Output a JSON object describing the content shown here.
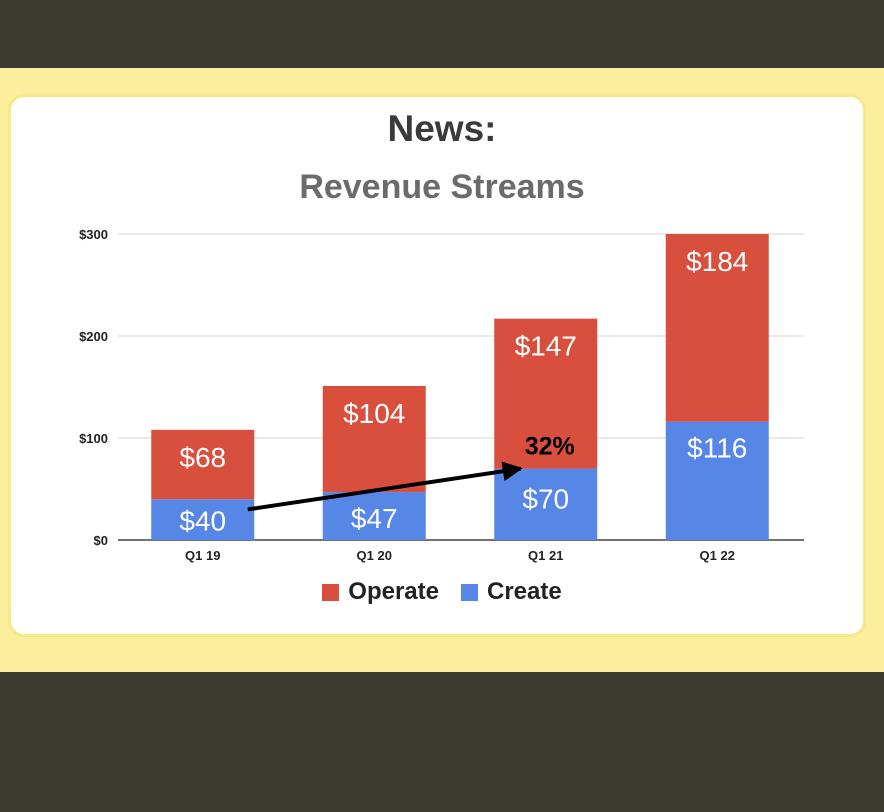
{
  "colors": {
    "operate": "#d94f3d",
    "create": "#5787e6",
    "background": "#3d3a30",
    "card_border": "#f7e88a"
  },
  "chart_data": {
    "type": "bar",
    "stacked": true,
    "title": "News:",
    "subtitle": "Revenue Streams",
    "categories": [
      "Q1 19",
      "Q1 20",
      "Q1 21",
      "Q1 22"
    ],
    "series": [
      {
        "name": "Create",
        "values": [
          40,
          47,
          70,
          116
        ],
        "labels": [
          "$40",
          "$47",
          "$70",
          "$116"
        ]
      },
      {
        "name": "Operate",
        "values": [
          68,
          104,
          147,
          184
        ],
        "labels": [
          "$68",
          "$104",
          "$147",
          "$184"
        ]
      }
    ],
    "ylim": [
      0,
      300
    ],
    "yticks": [
      {
        "value": 0,
        "label": "$0"
      },
      {
        "value": 100,
        "label": "$100"
      },
      {
        "value": 200,
        "label": "$200"
      },
      {
        "value": 300,
        "label": "$300"
      }
    ],
    "grid": true,
    "legend_position": "bottom",
    "annotation": {
      "text": "32%",
      "arrow_from": {
        "category": "Q1 19",
        "value": 30
      },
      "arrow_to": {
        "category": "Q1 21",
        "value": 70
      }
    }
  },
  "legend": [
    {
      "name": "Operate",
      "color": "#d94f3d"
    },
    {
      "name": "Create",
      "color": "#5787e6"
    }
  ]
}
